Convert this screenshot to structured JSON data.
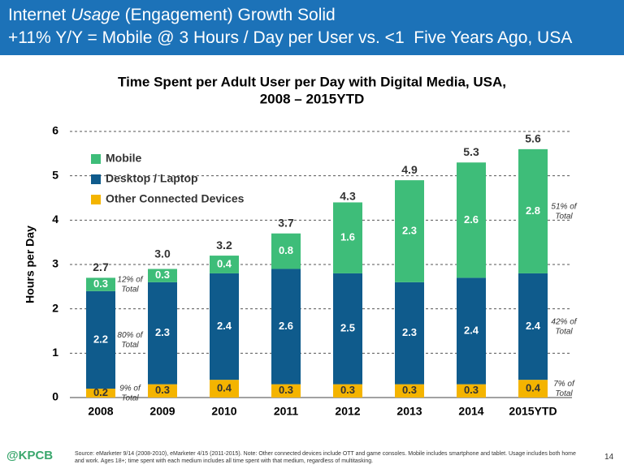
{
  "header": {
    "line1": [
      "Internet",
      "Usage",
      "(Engagement) Growth Solid"
    ],
    "line2": "+11% Y/Y = Mobile @ 3 Hours / Day per User vs. <1  Five Years Ago, USA"
  },
  "chart_data": {
    "type": "bar",
    "stacked": true,
    "title": [
      "Time Spent per Adult User per Day with Digital Media, USA,",
      "2008 – 2015YTD"
    ],
    "ylabel": "Hours per Day",
    "categories": [
      "2008",
      "2009",
      "2010",
      "2011",
      "2012",
      "2013",
      "2014",
      "2015YTD"
    ],
    "series": [
      {
        "name": "Other Connected Devices",
        "color": "#f4b400",
        "values": [
          0.2,
          0.3,
          0.4,
          0.3,
          0.3,
          0.3,
          0.3,
          0.4
        ]
      },
      {
        "name": "Desktop / Laptop",
        "color": "#0f5b8c",
        "values": [
          2.2,
          2.3,
          2.4,
          2.6,
          2.5,
          2.3,
          2.4,
          2.4
        ]
      },
      {
        "name": "Mobile",
        "color": "#3ebd79",
        "values": [
          0.3,
          0.3,
          0.4,
          0.8,
          1.6,
          2.3,
          2.6,
          2.8
        ]
      }
    ],
    "totals": {
      "values": [
        2.7,
        3,
        3.2,
        3.7,
        4.3,
        4.9,
        5.3,
        5.6
      ],
      "value_labels": [
        "2.7",
        "3.0",
        "3.2",
        "3.7",
        "4.3",
        "4.9",
        "5.3",
        "5.6"
      ]
    },
    "annotations": [
      "12% of Total",
      "80% of Total",
      "9% of Total",
      "51% of Total",
      "42% of Total",
      "7% of Total"
    ],
    "ylim": [
      0,
      6
    ],
    "yticks": [
      0,
      1,
      2,
      3,
      4,
      5,
      6
    ],
    "grid": true,
    "legend": "top-left"
  },
  "footer": {
    "logo": "@KPCB",
    "source": "Source: eMarketer 9/14 (2008-2010), eMarketer 4/15 (2011-2015). Note: Other connected devices include OTT and game consoles. Mobile includes smartphone and tablet. Usage includes both home and work. Ages 18+; time spent with each medium includes all time spent with that medium, regardless of multitasking.",
    "page": "14"
  }
}
